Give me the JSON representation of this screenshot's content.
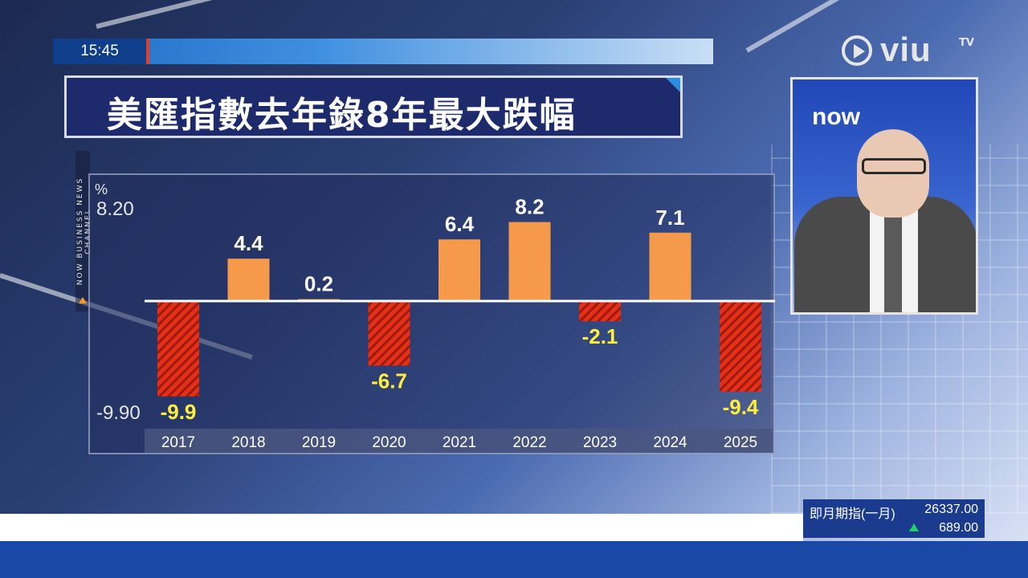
{
  "clock": "15:45",
  "channel_logo": {
    "word": "viu",
    "sub": "TV"
  },
  "side_channel_text": "NOW BUSINESS NEWS CHANNEL",
  "headline": "美匯指數去年錄8年最大跌幅",
  "anchor_logo": "now",
  "market": {
    "name": "即月期指(一月)",
    "value": "26337.00",
    "change": "689.00"
  },
  "colors": {
    "positive": "#f59a4a",
    "negative": "#e43018",
    "label_positive": "#ffffff",
    "label_negative": "#ffef3a"
  },
  "chart_data": {
    "type": "bar",
    "ylabel": "%",
    "ylim": [
      -9.9,
      8.2
    ],
    "y_tick_labels": [
      "8.20",
      "-9.90"
    ],
    "categories": [
      "2017",
      "2018",
      "2019",
      "2020",
      "2021",
      "2022",
      "2023",
      "2024",
      "2025"
    ],
    "values": [
      -9.9,
      4.4,
      0.2,
      -6.7,
      6.4,
      8.2,
      -2.1,
      7.1,
      -9.4
    ],
    "value_labels": [
      "-9.9",
      "4.4",
      "0.2",
      "-6.7",
      "6.4",
      "8.2",
      "-2.1",
      "7.1",
      "-9.4"
    ],
    "grid": false,
    "legend": "none"
  }
}
